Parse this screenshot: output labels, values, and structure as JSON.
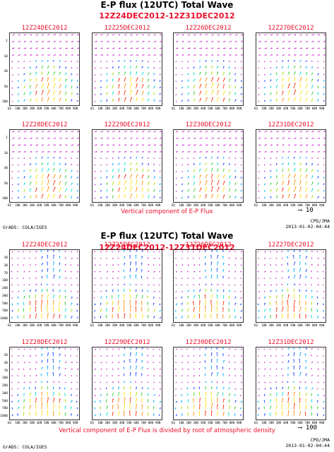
{
  "top": {
    "title": "E-P flux (12UTC) Total Wave",
    "subtitle": "12Z24DEC2012-12Z31DEC2012",
    "panels": [
      "12Z24DEC2012",
      "12Z25DEC2012",
      "12Z26DEC2012",
      "12Z27DEC2012",
      "12Z28DEC2012",
      "12Z29DEC2012",
      "12Z30DEC2012",
      "12Z31DEC2012"
    ],
    "caption": "Vertical component of E-P Flux",
    "scale_label": "10",
    "y_ticks": [
      "1",
      "10",
      "30",
      "50",
      "100"
    ],
    "x_ticks": [
      "EQ",
      "10N",
      "20N",
      "30N",
      "40N",
      "50N",
      "60N",
      "70N",
      "80N",
      "90N"
    ]
  },
  "bottom": {
    "title": "E-P flux (12UTC) Total Wave",
    "subtitle": "12Z24DEC2012-12Z31DEC2012",
    "panels": [
      "12Z24DEC2012",
      "12Z25DEC2012",
      "12Z26DEC2012",
      "12Z27DEC2012",
      "12Z28DEC2012",
      "12Z29DEC2012",
      "12Z30DEC2012",
      "12Z31DEC2012"
    ],
    "caption": "Vertical component of E-P Flux is divided by root of atmospheric density",
    "scale_label": "100",
    "y_ticks": [
      "20",
      "30",
      "70",
      "100",
      "200",
      "300",
      "500",
      "700",
      "1000"
    ],
    "x_ticks": [
      "EQ",
      "10N",
      "20N",
      "30N",
      "40N",
      "50N",
      "60N",
      "70N",
      "80N",
      "90N"
    ]
  },
  "footer": {
    "left": "GrADS: COLA/IGES",
    "org": "CPD/JMA",
    "timestamp": "2013-01-02-04:44"
  },
  "colors": {
    "title": "#000000",
    "subtitle": "#e8102a",
    "magenta_arrow": "#cc33cc",
    "palette": [
      "#cc33cc",
      "#2244ff",
      "#00aaff",
      "#00ddcc",
      "#33cc33",
      "#aadd00",
      "#ffdd00",
      "#ff8800",
      "#ff2200"
    ]
  }
}
